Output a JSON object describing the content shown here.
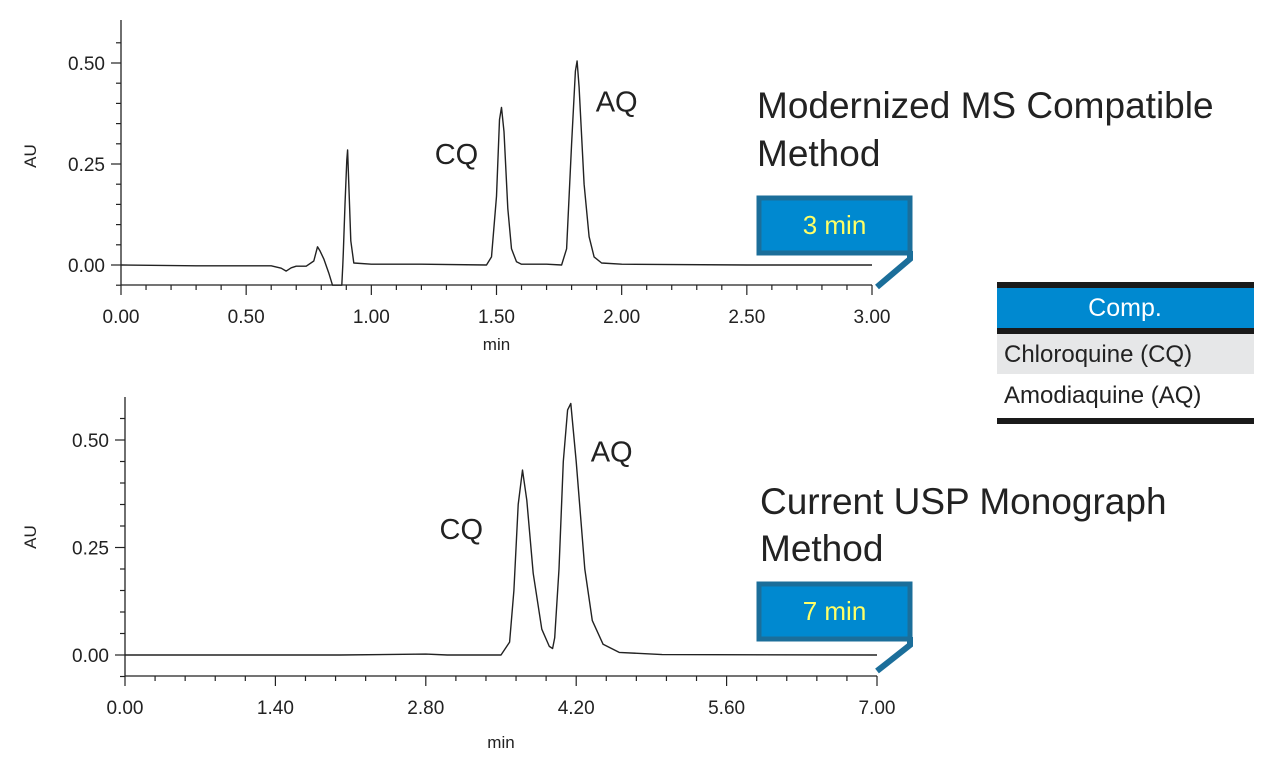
{
  "colors": {
    "accent": "#0089d0",
    "accent_border": "#1b6e9a",
    "badge_text": "#ffff66",
    "legend_row_shade": "#e6e7e8",
    "trace": "#222222"
  },
  "legend": {
    "header": "Comp.",
    "rows": [
      "Chloroquine (CQ)",
      "Amodiaquine (AQ)"
    ]
  },
  "chart_data": [
    {
      "type": "line",
      "title": "Modernized MS Compatible Method",
      "title_lines": [
        "Modernized MS Compatible",
        "Method"
      ],
      "badge": "3 min",
      "xlabel": "min",
      "ylabel": "AU",
      "xlim": [
        0,
        3.0
      ],
      "ylim": [
        -0.05,
        0.6
      ],
      "xticks": [
        0,
        0.5,
        1.0,
        1.5,
        2.0,
        2.5,
        3.0
      ],
      "xtick_labels": [
        "0.00",
        "0.50",
        "1.00",
        "1.50",
        "2.00",
        "2.50",
        "3.00"
      ],
      "yticks": [
        0,
        0.25,
        0.5
      ],
      "ytick_labels": [
        "0.00",
        "0.25",
        "0.50"
      ],
      "peak_labels": [
        {
          "text": "CQ",
          "x": 1.34,
          "y": 0.25
        },
        {
          "text": "AQ",
          "x": 1.98,
          "y": 0.38
        }
      ],
      "series": [
        {
          "x": [
            0.0,
            0.3,
            0.5,
            0.6,
            0.64,
            0.66,
            0.68,
            0.7,
            0.74,
            0.77,
            0.785,
            0.795,
            0.81,
            0.83,
            0.845,
            0.87,
            0.882,
            0.886,
            0.888,
            0.895,
            0.902,
            0.905,
            0.91,
            0.918,
            0.93,
            1.0,
            1.2,
            1.46,
            1.48,
            1.5,
            1.512,
            1.52,
            1.53,
            1.545,
            1.56,
            1.58,
            1.6,
            1.7,
            1.76,
            1.78,
            1.8,
            1.815,
            1.822,
            1.83,
            1.85,
            1.87,
            1.89,
            1.92,
            2.0,
            2.5,
            3.0
          ],
          "y": [
            0.0,
            -0.002,
            -0.002,
            -0.002,
            -0.008,
            -0.015,
            -0.007,
            -0.003,
            -0.003,
            0.01,
            0.045,
            0.035,
            0.015,
            -0.02,
            -0.05,
            -0.05,
            -0.05,
            0.0,
            0.03,
            0.15,
            0.26,
            0.285,
            0.2,
            0.06,
            0.005,
            0.002,
            0.002,
            0.0,
            0.02,
            0.17,
            0.36,
            0.39,
            0.33,
            0.14,
            0.04,
            0.008,
            0.002,
            0.002,
            0.0,
            0.04,
            0.3,
            0.48,
            0.505,
            0.44,
            0.2,
            0.07,
            0.02,
            0.005,
            0.002,
            0.0,
            0.0
          ]
        }
      ]
    },
    {
      "type": "line",
      "title": "Current USP Monograph Method",
      "title_lines": [
        "Current USP Monograph",
        "Method"
      ],
      "badge": "7 min",
      "xlabel": "min",
      "ylabel": "AU",
      "xlim": [
        0,
        7.0
      ],
      "ylim": [
        -0.05,
        0.6
      ],
      "xticks": [
        0,
        1.4,
        2.8,
        4.2,
        5.6,
        7.0
      ],
      "xtick_labels": [
        "0.00",
        "1.40",
        "2.80",
        "4.20",
        "5.60",
        "7.00"
      ],
      "yticks": [
        0,
        0.25,
        0.5
      ],
      "ytick_labels": [
        "0.00",
        "0.25",
        "0.50"
      ],
      "peak_labels": [
        {
          "text": "CQ",
          "x": 3.13,
          "y": 0.27
        },
        {
          "text": "AQ",
          "x": 4.53,
          "y": 0.45
        }
      ],
      "series": [
        {
          "x": [
            0.0,
            1.0,
            2.0,
            2.8,
            3.0,
            3.5,
            3.58,
            3.62,
            3.66,
            3.7,
            3.74,
            3.8,
            3.88,
            3.95,
            3.98,
            4.0,
            4.04,
            4.08,
            4.12,
            4.15,
            4.2,
            4.28,
            4.35,
            4.45,
            4.6,
            5.0,
            7.0
          ],
          "y": [
            0.0,
            0.0,
            0.0,
            0.002,
            0.0,
            0.0,
            0.03,
            0.15,
            0.35,
            0.43,
            0.36,
            0.19,
            0.06,
            0.02,
            0.015,
            0.04,
            0.2,
            0.45,
            0.57,
            0.585,
            0.45,
            0.2,
            0.08,
            0.025,
            0.006,
            0.001,
            0.0
          ]
        }
      ]
    }
  ]
}
